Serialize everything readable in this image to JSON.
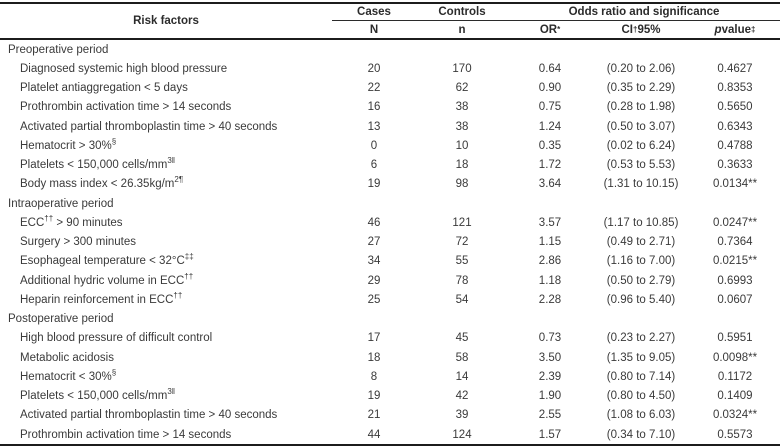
{
  "colors": {
    "text": "#3a3a3a",
    "rule": "#1c1c1c",
    "background": "#ffffff"
  },
  "table": {
    "header": {
      "risk_factors": "Risk factors",
      "cases": "Cases",
      "controls": "Controls",
      "odds_group": "Odds ratio and significance",
      "sub_cases_n": "N",
      "sub_controls_n": "n",
      "sub_or": "OR^*^",
      "sub_ci": "CI^†^ 95%",
      "sub_p": "~p~ value^‡^"
    },
    "sections": [
      {
        "title": "Preoperative period",
        "rows": [
          {
            "label": "Diagnosed systemic high blood pressure",
            "cases_n": "20",
            "controls_n": "170",
            "or": "0.64",
            "ci": "(0.20 to 2.06)",
            "p": "0.4627"
          },
          {
            "label": "Platelet antiaggregation < 5 days",
            "cases_n": "22",
            "controls_n": "62",
            "or": "0.90",
            "ci": "(0.35 to 2.29)",
            "p": "0.8353"
          },
          {
            "label": "Prothrombin activation time > 14 seconds",
            "cases_n": "16",
            "controls_n": "38",
            "or": "0.75",
            "ci": "(0.28 to 1.98)",
            "p": "0.5650"
          },
          {
            "label": "Activated partial thromboplastin time > 40 seconds",
            "cases_n": "13",
            "controls_n": "38",
            "or": "1.24",
            "ci": "(0.50 to 3.07)",
            "p": "0.6343"
          },
          {
            "label": "Hematocrit > 30%^§^",
            "cases_n": "0",
            "controls_n": "10",
            "or": "0.35",
            "ci": "(0.02 to 6.24)",
            "p": "0.4788"
          },
          {
            "label": "Platelets < 150,000 cells/mm^3‖^",
            "cases_n": "6",
            "controls_n": "18",
            "or": "1.72",
            "ci": "(0.53 to 5.53)",
            "p": "0.3633"
          },
          {
            "label": "Body mass index < 26.35kg/m^2¶^",
            "cases_n": "19",
            "controls_n": "98",
            "or": "3.64",
            "ci": "(1.31 to 10.15)",
            "p": "0.0134**"
          }
        ]
      },
      {
        "title": "Intraoperative period",
        "rows": [
          {
            "label": "ECC^††^ > 90 minutes",
            "cases_n": "46",
            "controls_n": "121",
            "or": "3.57",
            "ci": "(1.17 to 10.85)",
            "p": "0.0247**"
          },
          {
            "label": "Surgery > 300 minutes",
            "cases_n": "27",
            "controls_n": "72",
            "or": "1.15",
            "ci": "(0.49 to 2.71)",
            "p": "0.7364"
          },
          {
            "label": "Esophageal temperature < 32°C^‡‡^",
            "cases_n": "34",
            "controls_n": "55",
            "or": "2.86",
            "ci": "(1.16 to 7.00)",
            "p": "0.0215**"
          },
          {
            "label": "Additional hydric volume in ECC^††^",
            "cases_n": "29",
            "controls_n": "78",
            "or": "1.18",
            "ci": "(0.50 to 2.79)",
            "p": "0.6993"
          },
          {
            "label": "Heparin reinforcement in ECC^††^",
            "cases_n": "25",
            "controls_n": "54",
            "or": "2.28",
            "ci": "(0.96 to 5.40)",
            "p": "0.0607"
          }
        ]
      },
      {
        "title": "Postoperative period",
        "rows": [
          {
            "label": "High blood pressure of difficult control",
            "cases_n": "17",
            "controls_n": "45",
            "or": "0.73",
            "ci": "(0.23 to 2.27)",
            "p": "0.5951"
          },
          {
            "label": "Metabolic acidosis",
            "cases_n": "18",
            "controls_n": "58",
            "or": "3.50",
            "ci": "(1.35 to 9.05)",
            "p": "0.0098**"
          },
          {
            "label": "Hematocrit < 30%^§^",
            "cases_n": "8",
            "controls_n": "14",
            "or": "2.39",
            "ci": "(0.80 to 7.14)",
            "p": "0.1172"
          },
          {
            "label": "Platelets < 150,000 cells/mm^3‖^",
            "cases_n": "19",
            "controls_n": "42",
            "or": "1.90",
            "ci": "(0.80 to 4.50)",
            "p": "0.1409"
          },
          {
            "label": "Activated partial thromboplastin time > 40 seconds",
            "cases_n": "21",
            "controls_n": "39",
            "or": "2.55",
            "ci": "(1.08 to 6.03)",
            "p": "0.0324**"
          },
          {
            "label": "Prothrombin activation time > 14 seconds",
            "cases_n": "44",
            "controls_n": "124",
            "or": "1.57",
            "ci": "(0.34 to 7.10)",
            "p": "0.5573"
          }
        ]
      }
    ]
  }
}
